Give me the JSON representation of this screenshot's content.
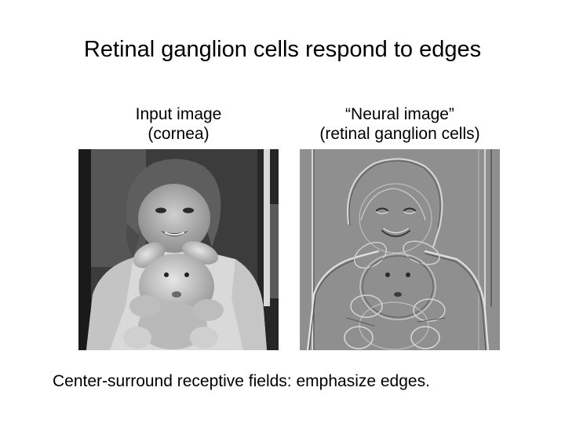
{
  "slide": {
    "title": "Retinal ganglion cells respond to edges",
    "left_panel": {
      "caption_line1": "Input image",
      "caption_line2": "(cornea)",
      "image_description": "grayscale photo of a smiling child hugging a stuffed bunny"
    },
    "right_panel": {
      "caption_line1": "“Neural image”",
      "caption_line2": "(retinal ganglion cells)",
      "image_description": "edge-filtered version of the same photo on mid-gray background"
    },
    "footer": "Center-surround receptive fields: emphasize edges."
  }
}
